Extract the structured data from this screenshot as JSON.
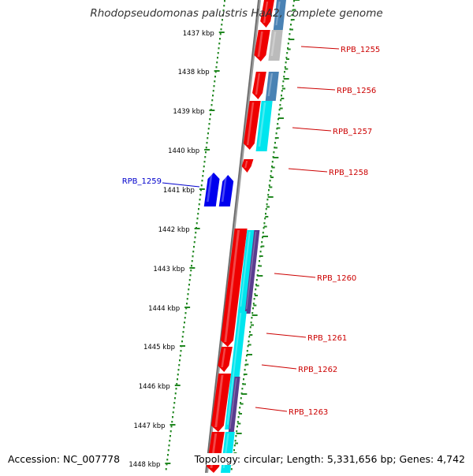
{
  "title": "Rhodopseudomonas palustris HaA2, complete genome",
  "footer": {
    "accession": "Accession: NC_007778",
    "summary": "Topology: circular; Length: 5,331,656 bp; Genes: 4,742"
  },
  "colors": {
    "backbone": "#808080",
    "dots": "#228822",
    "forward_red": "#ee0000",
    "cyan": "#00e5ee",
    "purple": "#5a3d8f",
    "steelblue": "#4a82b4",
    "gray": "#bbbbbb",
    "reverse_blue": "#0000ee",
    "label_red": "#cc0000",
    "label_blue": "#0000cc"
  },
  "kbp_labels": [
    "1437 kbp",
    "1438 kbp",
    "1439 kbp",
    "1440 kbp",
    "1441 kbp",
    "1442 kbp",
    "1443 kbp",
    "1444 kbp",
    "1445 kbp",
    "1446 kbp",
    "1447 kbp",
    "1448 kbp"
  ],
  "gene_labels_forward": [
    "RPB_1255",
    "RPB_1256",
    "RPB_1257",
    "RPB_1258",
    "RPB_1260",
    "RPB_1261",
    "RPB_1262",
    "RPB_1263"
  ],
  "gene_label_reverse": "RPB_1259"
}
